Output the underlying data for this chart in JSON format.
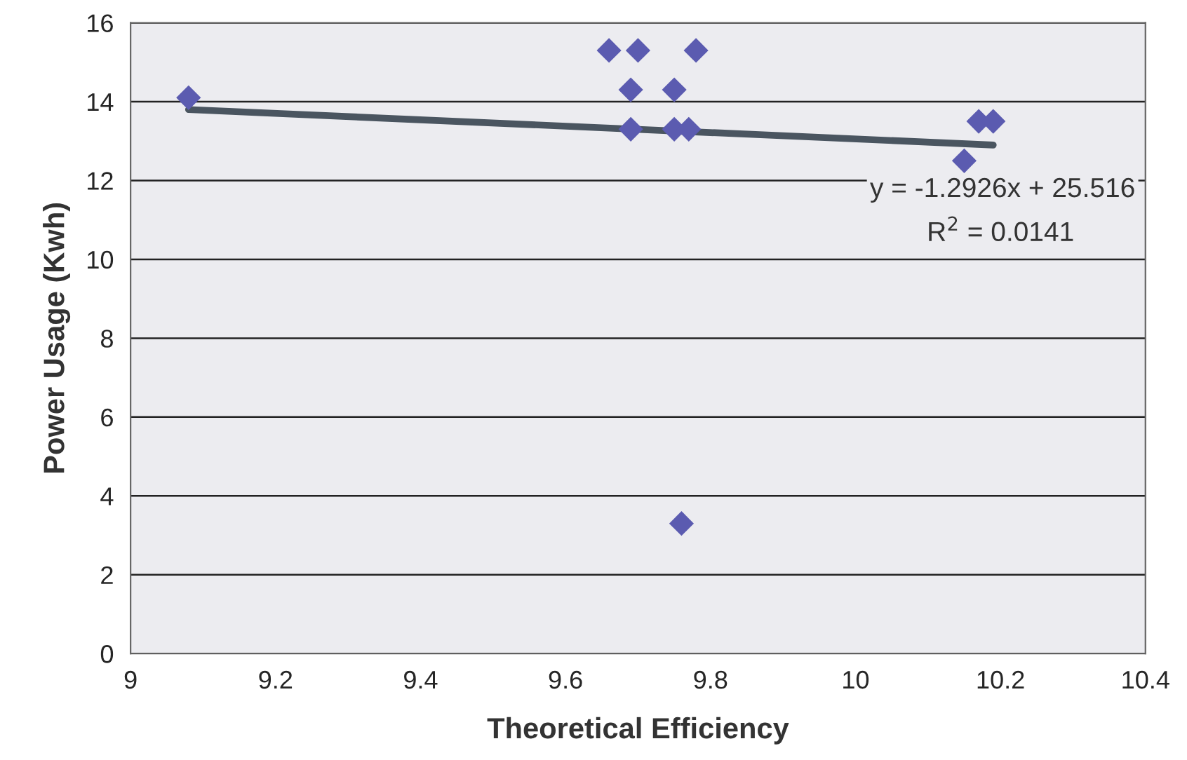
{
  "chart_data": {
    "type": "scatter",
    "xlabel": "Theoretical Efficiency",
    "ylabel": "Power Usage (Kwh)",
    "xlim": [
      9,
      10.4
    ],
    "xticks": [
      9,
      9.2,
      9.4,
      9.6,
      9.8,
      10,
      10.2,
      10.4
    ],
    "ylim": [
      0,
      16
    ],
    "yticks": [
      0,
      2,
      4,
      6,
      8,
      10,
      12,
      14,
      16
    ],
    "grid": "y",
    "marker": "diamond",
    "series": [
      {
        "color": "#5b5bb0",
        "x": [
          9.08,
          9.66,
          9.7,
          9.78,
          9.69,
          9.75,
          9.69,
          9.75,
          9.77,
          9.76,
          10.15,
          10.17,
          10.19
        ],
        "values": [
          14.1,
          15.3,
          15.3,
          15.3,
          14.3,
          14.3,
          13.3,
          13.3,
          13.3,
          3.3,
          12.5,
          13.5,
          13.5
        ]
      },
      {
        "type": "line",
        "color": "#4a5560",
        "x": [
          9.08,
          10.19
        ],
        "values": [
          13.8,
          12.9
        ],
        "marker": "none"
      }
    ],
    "annotations": [
      "y = -1.2926x + 25.516",
      "R$^{2}$ = 0.0141"
    ]
  }
}
